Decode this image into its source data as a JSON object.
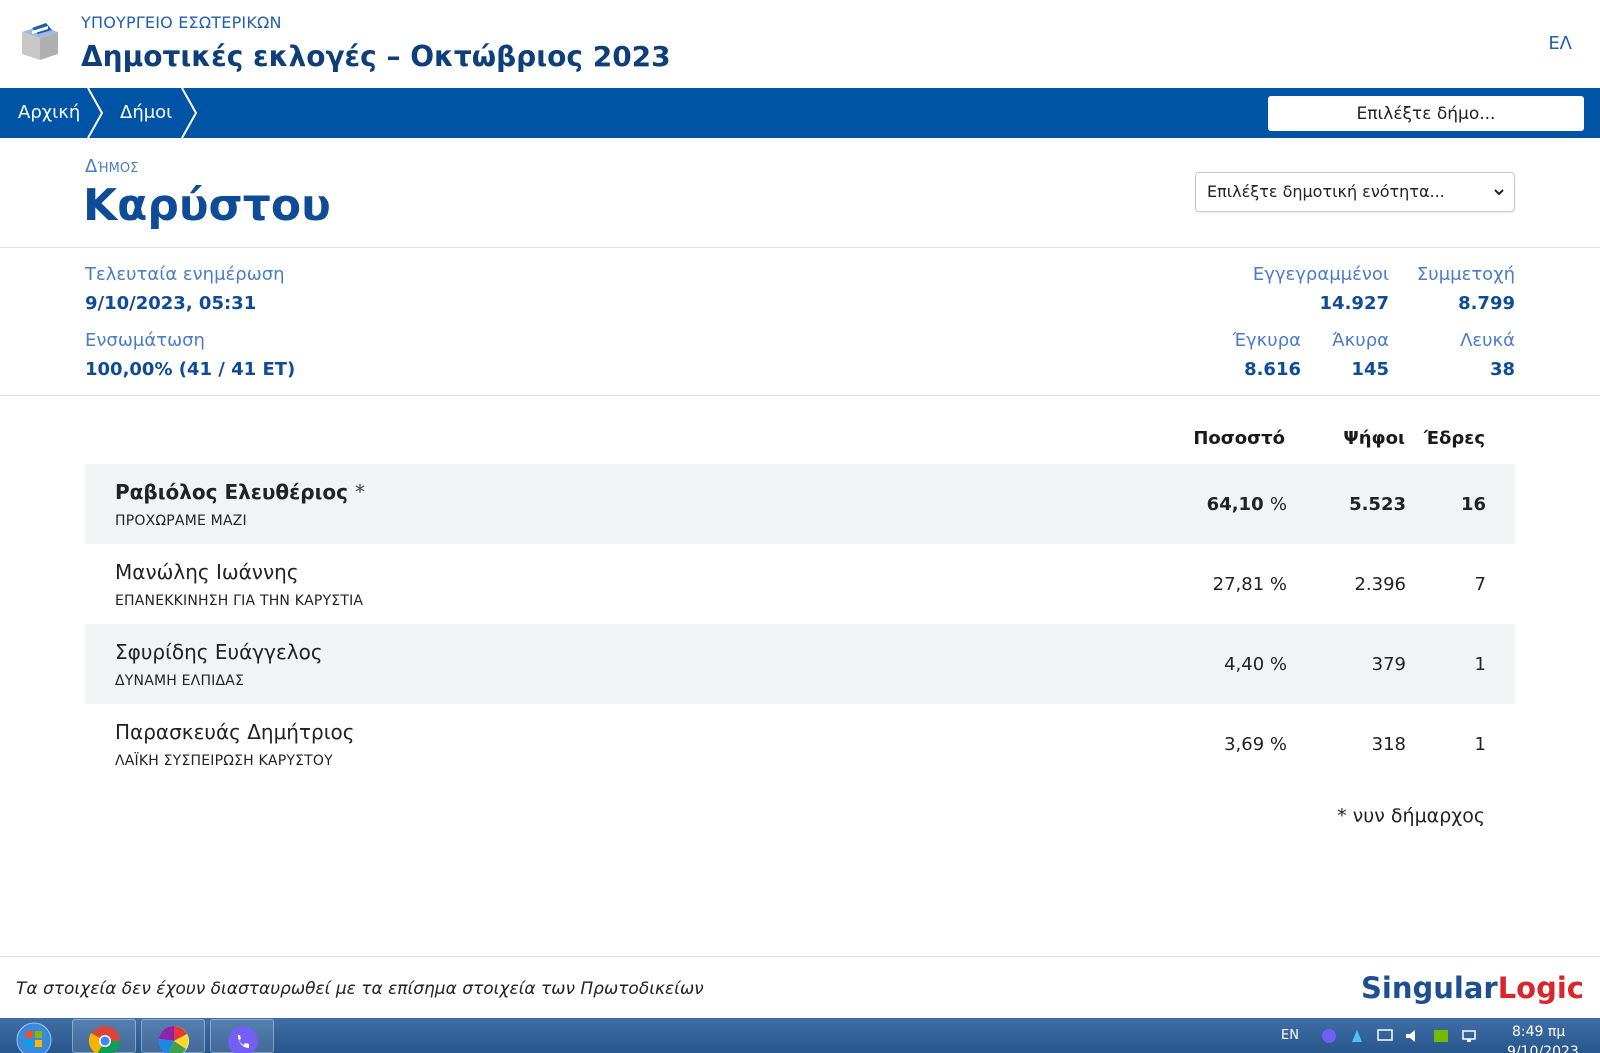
{
  "header": {
    "ministry": "ΥΠΟΥΡΓΕΙΟ ΕΣΩΤΕΡΙΚΩΝ",
    "title": "Δημοτικές εκλογές – Οκτώβριος 2023",
    "language": "ΕΛ",
    "logo_icon": "ballot-box-icon"
  },
  "navbar": {
    "breadcrumbs": [
      "Αρχική",
      "Δήμοι"
    ],
    "municipality_search_placeholder": "Επιλέξτε δήμο..."
  },
  "municipality": {
    "label": "Δήμος",
    "name": "Καρύστου",
    "unit_select_value": "Επιλέξτε δημοτική ενότητα..."
  },
  "stats": {
    "last_update_label": "Τελευταία ενημέρωση",
    "last_update_value": "9/10/2023, 05:31",
    "integration_label": "Ενσωμάτωση",
    "integration_value": "100,00% (41 / 41 ΕΤ)",
    "registered_label": "Εγγεγραμμένοι",
    "registered_value": "14.927",
    "turnout_label": "Συμμετοχή",
    "turnout_value": "8.799",
    "valid_label": "Έγκυρα",
    "valid_value": "8.616",
    "invalid_label": "Άκυρα",
    "invalid_value": "145",
    "blank_label": "Λευκά",
    "blank_value": "38"
  },
  "results": {
    "columns": {
      "percent": "Ποσοστό",
      "votes": "Ψήφοι",
      "seats": "Έδρες"
    },
    "rows": [
      {
        "candidate": "Ραβιόλος Ελευθέριος",
        "marker": "*",
        "party": "ΠΡΟΧΩΡΑΜΕ ΜΑΖΙ",
        "percent": "64,10",
        "votes": "5.523",
        "seats": "16"
      },
      {
        "candidate": "Μανώλης Ιωάννης",
        "marker": "",
        "party": "ΕΠΑΝΕΚΚΙΝΗΣΗ ΓΙΑ ΤΗΝ ΚΑΡΥΣΤΙΑ",
        "percent": "27,81",
        "votes": "2.396",
        "seats": "7"
      },
      {
        "candidate": "Σφυρίδης Ευάγγελος",
        "marker": "",
        "party": "ΔΥΝΑΜΗ ΕΛΠΙΔΑΣ",
        "percent": "4,40",
        "votes": "379",
        "seats": "1"
      },
      {
        "candidate": "Παρασκευάς Δημήτριος",
        "marker": "",
        "party": "ΛΑΪΚΗ ΣΥΣΠΕΙΡΩΣΗ ΚΑΡΥΣΤΟΥ",
        "percent": "3,69",
        "votes": "318",
        "seats": "1"
      }
    ],
    "percent_symbol": "%",
    "footnote": "* νυν δήμαρχος"
  },
  "footer": {
    "disclaimer": "Τα στοιχεία δεν έχουν διασταυρωθεί με τα επίσημα στοιχεία των Πρωτοδικείων",
    "brand_part1": "Singular",
    "brand_part2": "Logic"
  },
  "taskbar": {
    "input_language": "EN",
    "time": "8:49 πμ",
    "date": "9/10/2023",
    "apps": [
      "chrome-icon",
      "picasa-icon",
      "viber-icon"
    ]
  },
  "colors": {
    "navbar": "#0054a6",
    "title": "#0f3f7a",
    "label": "#4a7cc9",
    "row_shade": "#f2f3f4",
    "brand_red": "#d9262c"
  }
}
